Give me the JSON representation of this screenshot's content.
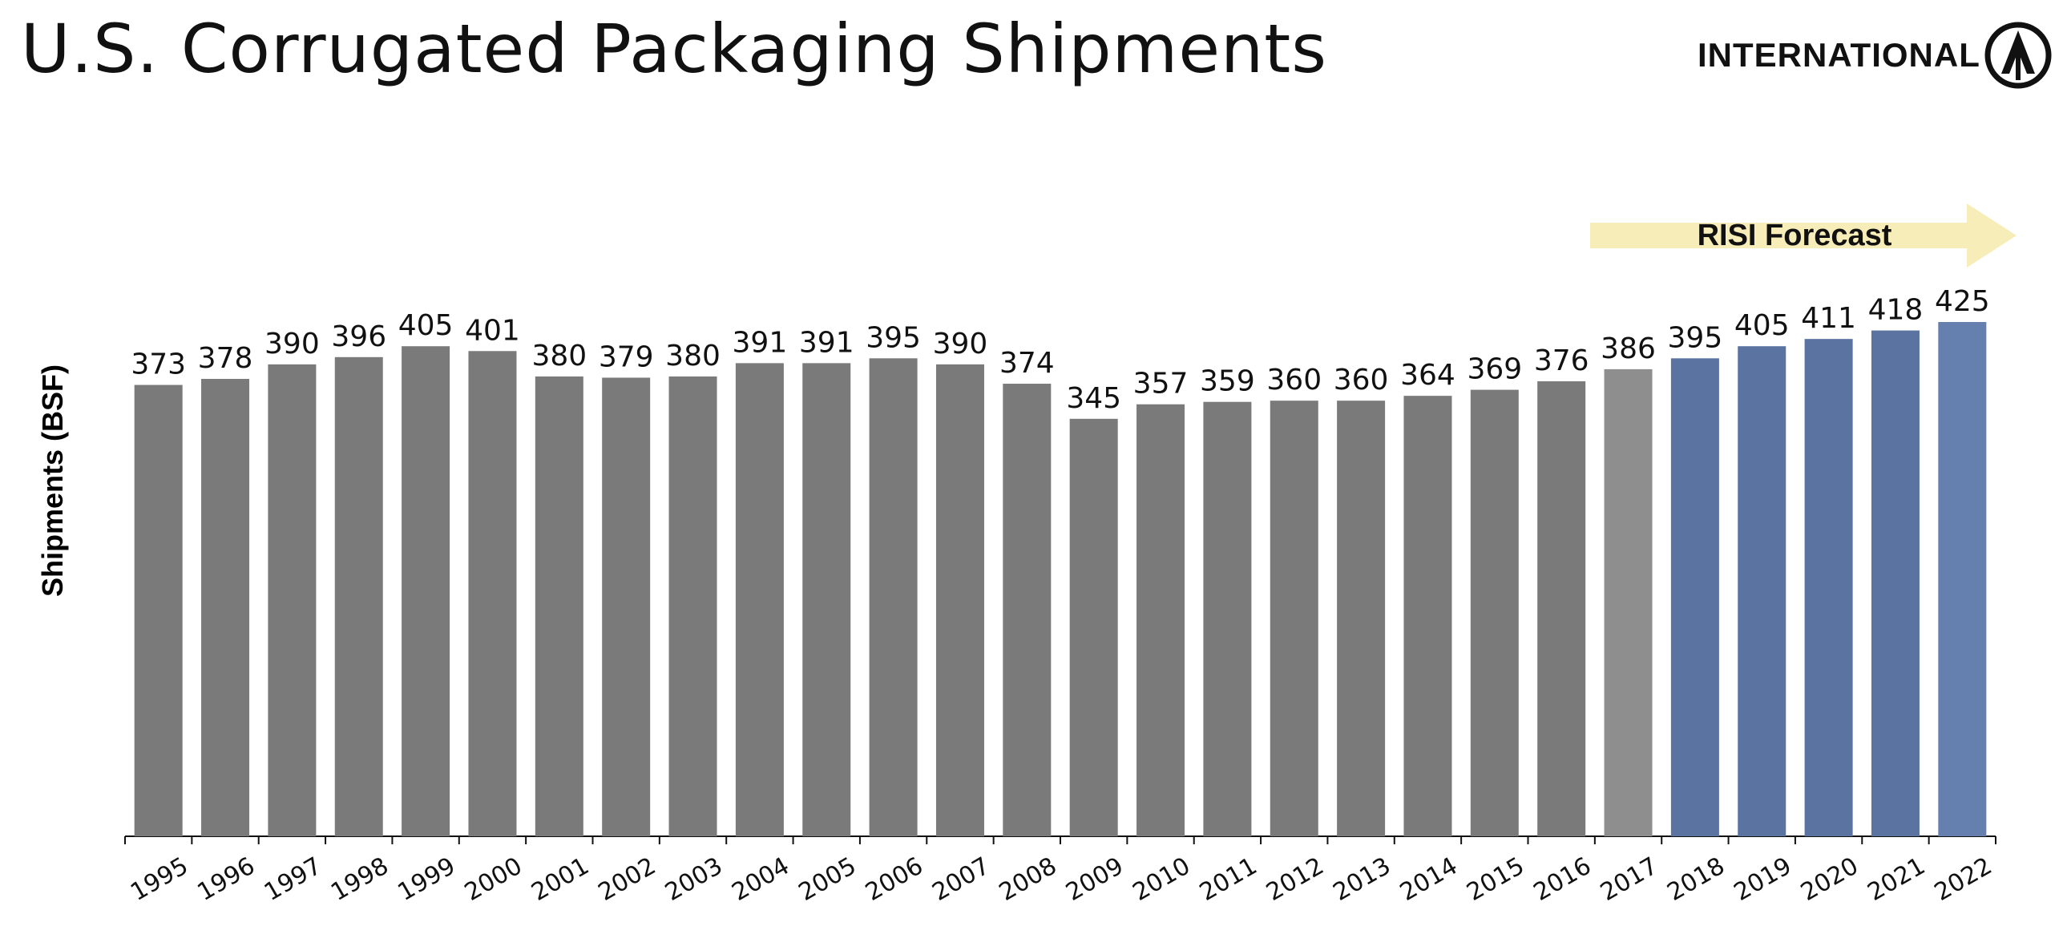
{
  "title": "U.S. Corrugated Packaging Shipments",
  "logo": {
    "text": "INTERNATIONAL",
    "mark": "international-paper-logo-icon"
  },
  "forecast_banner": {
    "label": "RISI Forecast",
    "color": "#F7EDB8"
  },
  "colors": {
    "historical": "#7A7A7A",
    "latest_actual": "#8E8E8E",
    "forecast": "#5A73A0",
    "forecast_last": "#6580AE"
  },
  "chart_data": {
    "type": "bar",
    "title": "U.S. Corrugated Packaging Shipments",
    "xlabel": "",
    "ylabel": "Shipments (BSF)",
    "ylim": [
      0,
      430
    ],
    "grid": false,
    "categories": [
      "1995",
      "1996",
      "1997",
      "1998",
      "1999",
      "2000",
      "2001",
      "2002",
      "2003",
      "2004",
      "2005",
      "2006",
      "2007",
      "2008",
      "2009",
      "2010",
      "2011",
      "2012",
      "2013",
      "2014",
      "2015",
      "2016",
      "2017",
      "2018",
      "2019",
      "2020",
      "2021",
      "2022"
    ],
    "values": [
      373,
      378,
      390,
      396,
      405,
      401,
      380,
      379,
      380,
      391,
      391,
      395,
      390,
      374,
      345,
      357,
      359,
      360,
      360,
      364,
      369,
      376,
      386,
      395,
      405,
      411,
      418,
      425
    ],
    "forecast_from": "2018",
    "data_labels": true
  }
}
